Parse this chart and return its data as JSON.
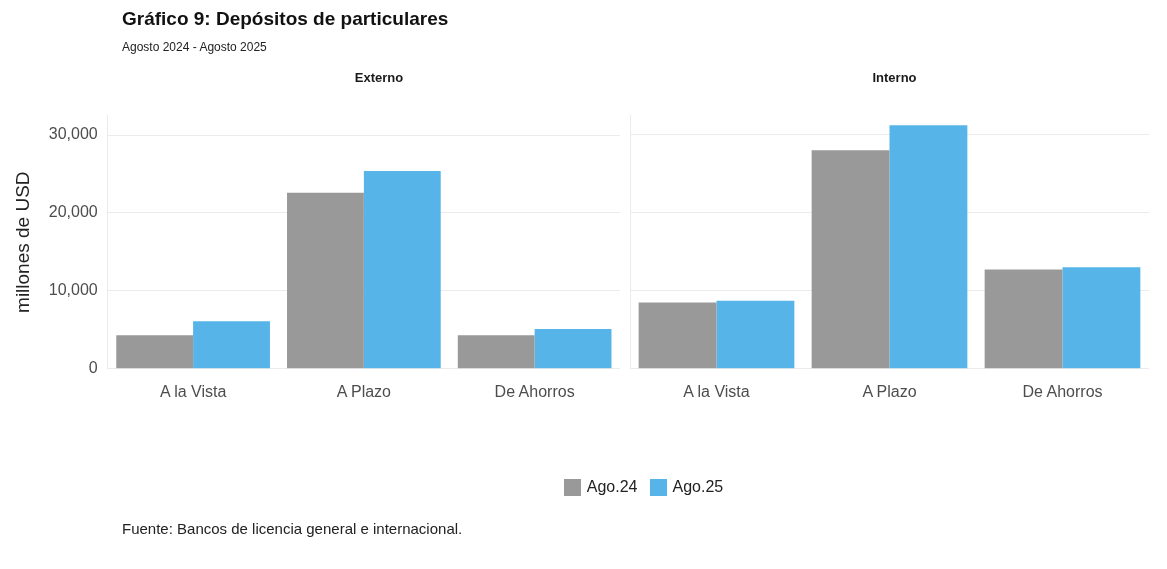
{
  "chart_data": [
    {
      "type": "bar",
      "title": "Gráfico 9:  Depósitos de particulares",
      "subtitle": "Agosto  2024  -  Agosto 2025",
      "ylabel": "millones de USD",
      "categories": [
        "A la Vista",
        "A Plazo",
        "De Ahorros"
      ],
      "series": [
        {
          "name": "Ago.24",
          "color": "#999999",
          "values": [
            4300,
            22600,
            4300
          ]
        },
        {
          "name": "Ago.25",
          "color": "#56b4e9",
          "values": [
            6100,
            25400,
            5100
          ]
        }
      ],
      "ylim": [
        0,
        32500
      ],
      "yticks": [
        0,
        {
          "value": 10000,
          "label": "10,000"
        },
        {
          "value": 20000,
          "label": "20,000"
        },
        {
          "value": 30000,
          "label": "30,000"
        }
      ],
      "grid": "y",
      "legend": "bottom",
      "annotations": [
        "Externo",
        "Fuente:  Bancos de licencia general e internacional."
      ]
    },
    {
      "type": "bar",
      "categories": [
        "A la Vista",
        "A Plazo",
        "De Ahorros"
      ],
      "series": [
        {
          "color": "#999999",
          "values": [
            8500,
            28000,
            12700
          ]
        },
        {
          "color": "#56b4e9",
          "values": [
            8700,
            31200,
            13000
          ]
        }
      ],
      "ylim": [
        0,
        32500
      ],
      "yticks": [
        0,
        10000,
        20000,
        30000
      ],
      "grid": "y",
      "tick_labels": "x",
      "annotations": [
        "Interno"
      ]
    }
  ]
}
